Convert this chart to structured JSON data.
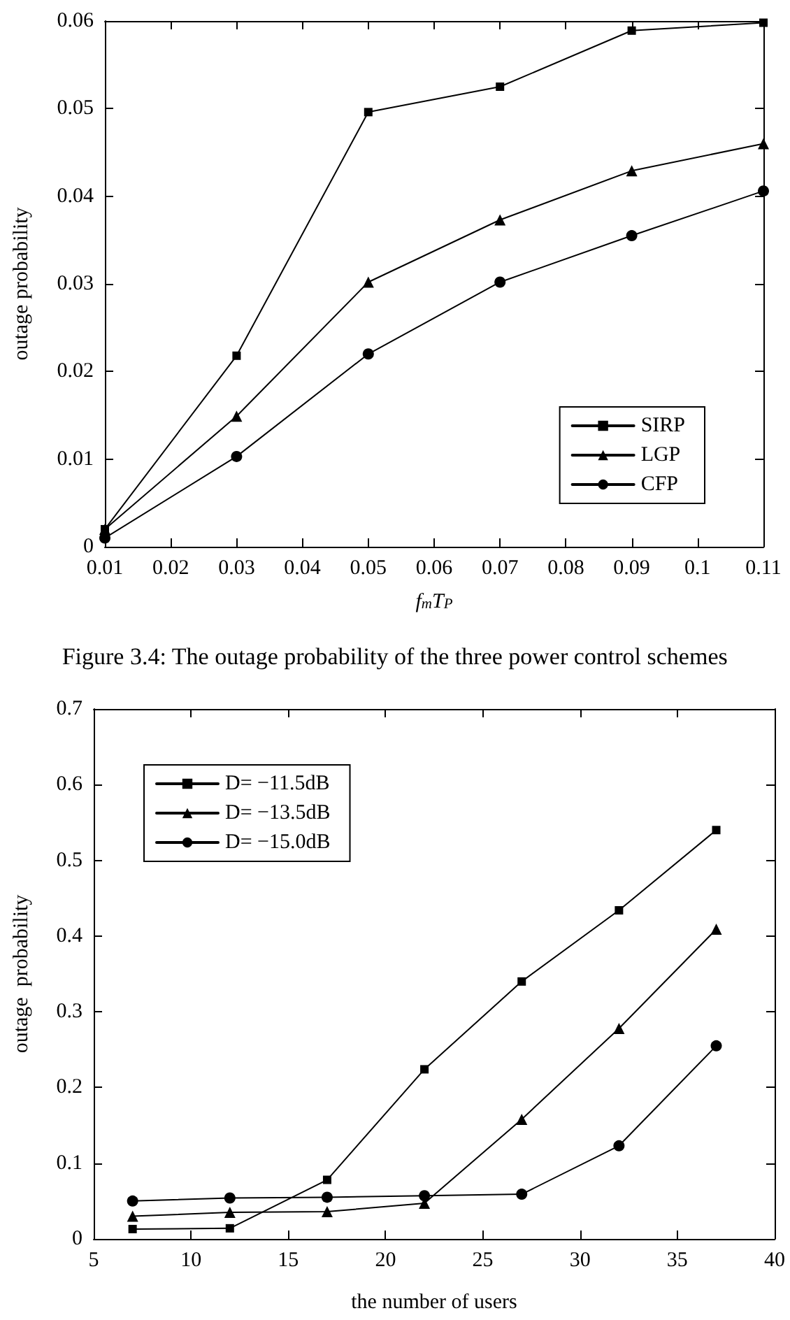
{
  "chart_data": [
    {
      "type": "line",
      "xlabel": "f$_{m}$T$_{P}$",
      "ylabel": "outage probability",
      "annotations": [
        "Figure 3.4: The outage probability of the three power control schemes"
      ],
      "x": [
        0.01,
        0.03,
        0.05,
        0.07,
        0.09,
        0.11
      ],
      "series": [
        {
          "name": "SIRP",
          "color": "#000000",
          "marker": "square",
          "values": [
            0.002,
            0.0218,
            0.0496,
            0.0525,
            0.0589,
            0.0598
          ]
        },
        {
          "name": "LGP",
          "color": "#000000",
          "marker": "triangle",
          "values": [
            0.002,
            0.0149,
            0.0302,
            0.0373,
            0.0429,
            0.046
          ]
        },
        {
          "name": "CFP",
          "color": "#000000",
          "marker": "circle",
          "values": [
            0.001,
            0.0103,
            0.022,
            0.0302,
            0.0355,
            0.0406
          ]
        }
      ],
      "xlim": [
        0.01,
        0.11
      ],
      "xticks": [
        0.01,
        0.02,
        0.03,
        0.04,
        0.05,
        0.06,
        0.07,
        0.08,
        0.09,
        0.1,
        0.11
      ],
      "ylim": [
        0,
        0.06
      ],
      "yticks": [
        0,
        0.01,
        0.02,
        0.03,
        0.04,
        0.05,
        0.06
      ],
      "legend": "bottom right",
      "line_style": "solid"
    },
    {
      "type": "line",
      "xlabel": "the number of users",
      "ylabel": "outage  probability",
      "x": [
        7,
        12,
        17,
        22,
        27,
        32,
        37
      ],
      "series": [
        {
          "name": "D= −11.5dB",
          "color": "#000000",
          "marker": "square",
          "values": [
            0.013,
            0.014,
            0.078,
            0.224,
            0.34,
            0.434,
            0.54
          ]
        },
        {
          "name": "D= −13.5dB",
          "color": "#000000",
          "marker": "triangle",
          "values": [
            0.03,
            0.035,
            0.036,
            0.047,
            0.158,
            0.278,
            0.409
          ]
        },
        {
          "name": "D= −15.0dB",
          "color": "#000000",
          "marker": "circle",
          "values": [
            0.05,
            0.054,
            0.055,
            0.057,
            0.059,
            0.123,
            0.255
          ]
        }
      ],
      "xlim": [
        5,
        40
      ],
      "xticks": [
        5,
        10,
        15,
        20,
        25,
        30,
        35,
        40
      ],
      "ylim": [
        0,
        0.7
      ],
      "yticks": [
        0,
        0.1,
        0.2,
        0.3,
        0.4,
        0.5,
        0.6,
        0.7
      ],
      "legend": "top left",
      "line_style": "solid"
    }
  ]
}
